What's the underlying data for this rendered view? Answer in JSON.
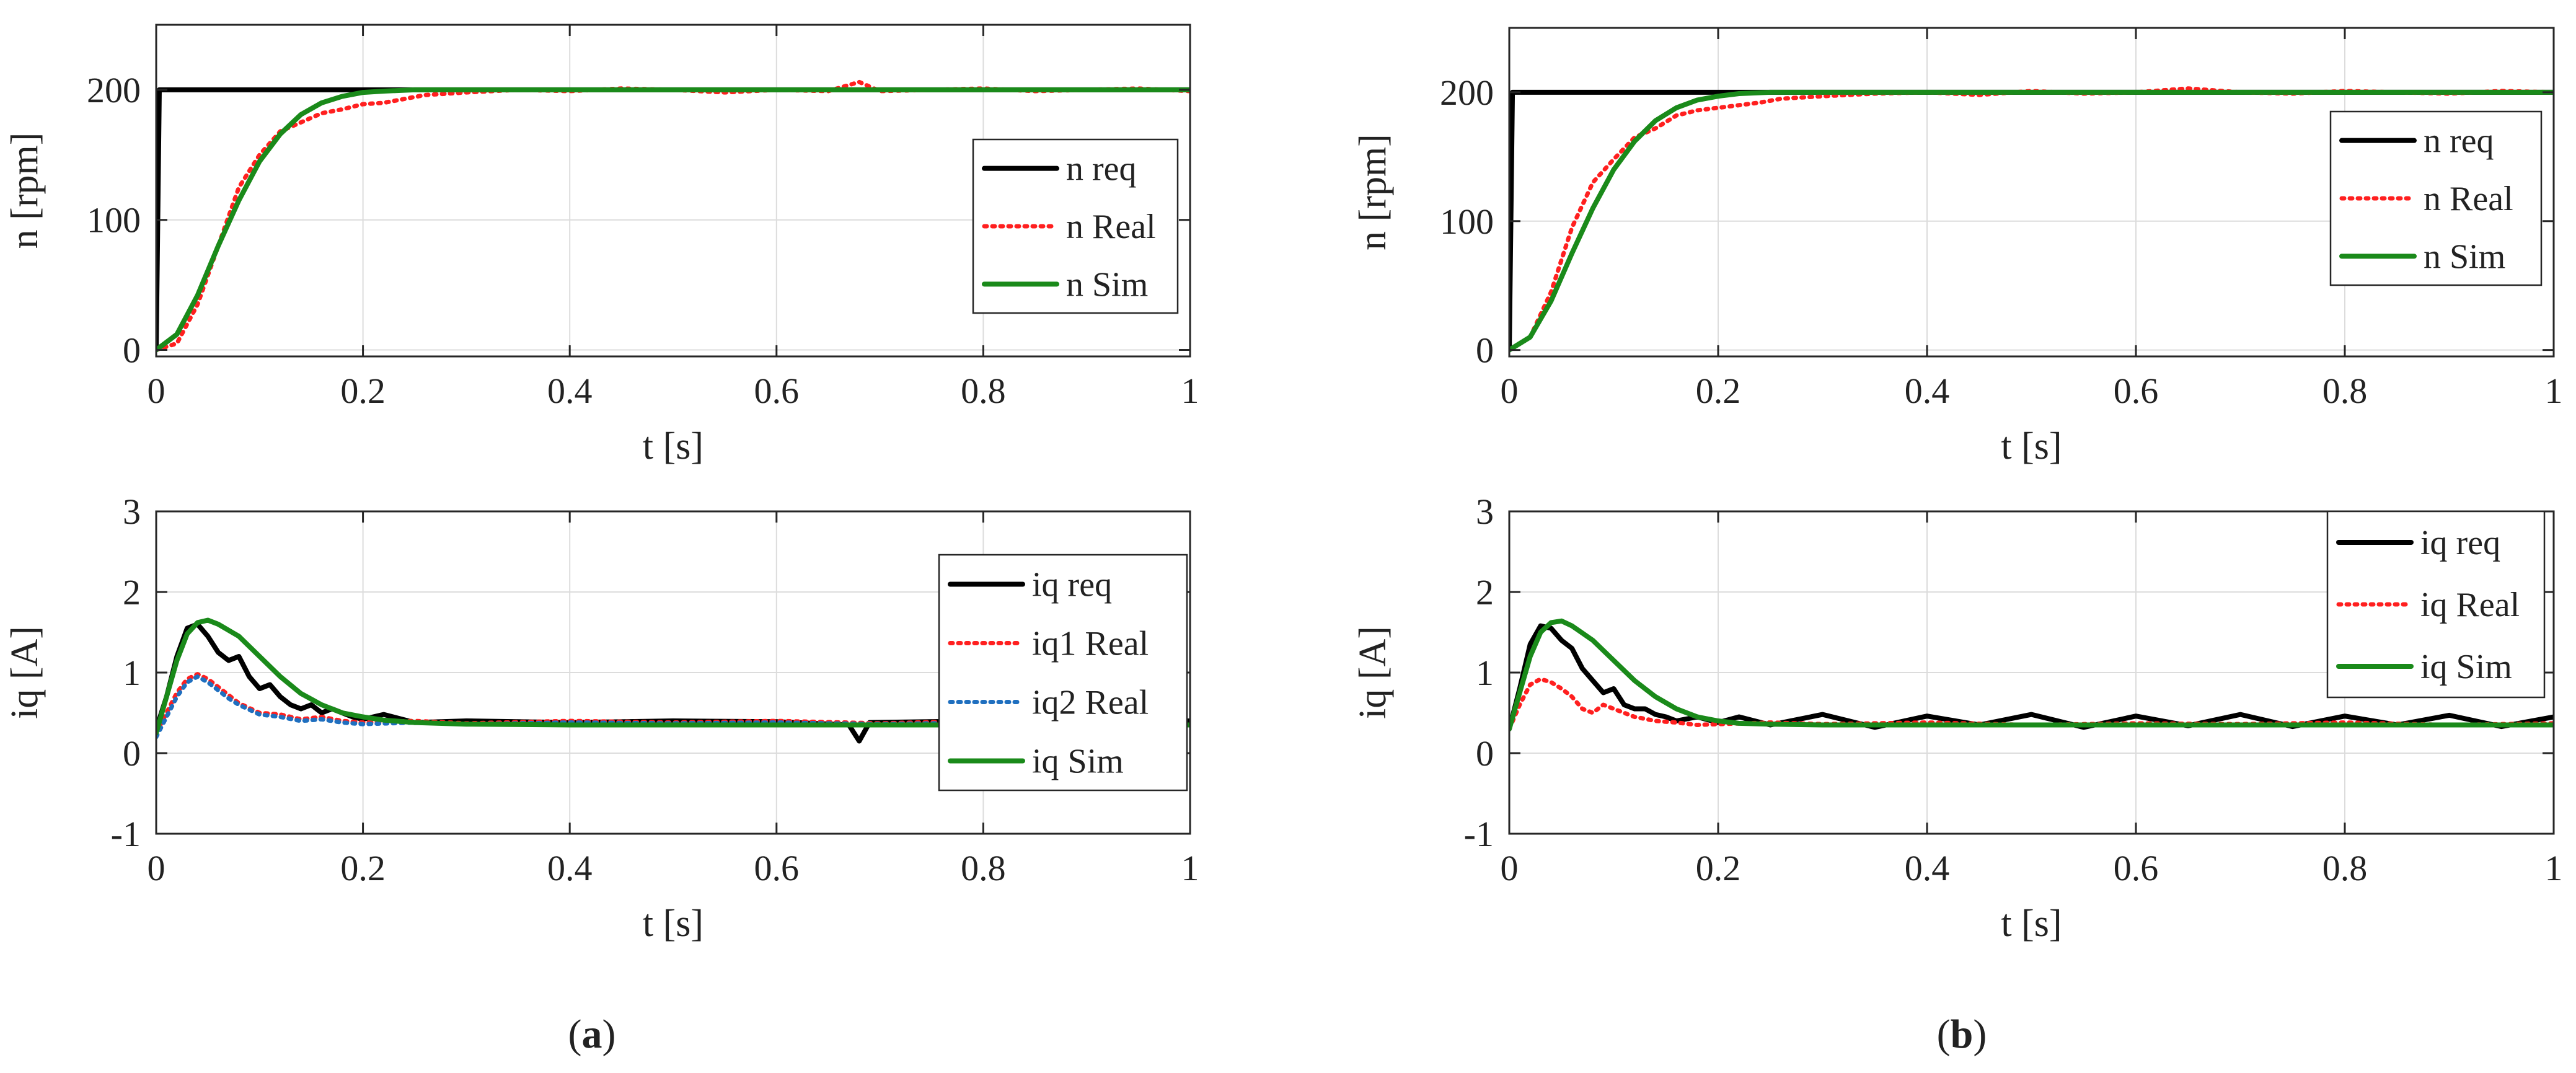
{
  "colors": {
    "req": "#000000",
    "real": "#ff1f1f",
    "real2": "#1f6fbf",
    "sim": "#1a8a1a",
    "axis": "#262626",
    "grid": "#dcdcdc"
  },
  "panels": [
    {
      "caption": "(a)",
      "caption_letter": "a",
      "caption_open": "(",
      "caption_close": ")"
    },
    {
      "caption": "(b)",
      "caption_letter": "b",
      "caption_open": "(",
      "caption_close": ")"
    }
  ],
  "chart_data": [
    {
      "id": "a-speed",
      "type": "line",
      "xlabel": "t [s]",
      "ylabel": "n [rpm]",
      "xlim": [
        0,
        1
      ],
      "ylim": [
        -5,
        250
      ],
      "xticks": [
        0,
        0.2,
        0.4,
        0.6,
        0.8,
        1
      ],
      "xtick_labels": [
        "0",
        "0.2",
        "0.4",
        "0.6",
        "0.8",
        "1"
      ],
      "yticks": [
        0,
        100,
        200
      ],
      "ytick_labels": [
        "0",
        "100",
        "200"
      ],
      "grid": true,
      "legend_position": "right",
      "series": [
        {
          "name": "n req",
          "style": "solid",
          "color": "#000000",
          "x": [
            0,
            0.003,
            1
          ],
          "y": [
            0,
            200,
            200
          ]
        },
        {
          "name": "n Real",
          "style": "dotted",
          "color": "#ff1f1f",
          "x": [
            0,
            0.02,
            0.04,
            0.06,
            0.08,
            0.1,
            0.12,
            0.14,
            0.16,
            0.18,
            0.2,
            0.22,
            0.24,
            0.26,
            0.3,
            0.35,
            0.4,
            0.45,
            0.5,
            0.55,
            0.6,
            0.65,
            0.68,
            0.7,
            0.75,
            0.8,
            0.85,
            0.9,
            0.95,
            1.0
          ],
          "y": [
            0,
            5,
            35,
            80,
            125,
            150,
            168,
            175,
            182,
            185,
            189,
            190,
            193,
            196,
            198,
            200,
            199,
            201,
            200,
            198,
            200,
            199,
            206,
            199,
            200,
            201,
            199,
            200,
            201,
            199
          ]
        },
        {
          "name": "n Sim",
          "style": "solid",
          "color": "#1a8a1a",
          "x": [
            0,
            0.02,
            0.04,
            0.06,
            0.08,
            0.1,
            0.12,
            0.14,
            0.16,
            0.18,
            0.2,
            0.22,
            0.25,
            0.3,
            0.4,
            0.6,
            0.8,
            1.0
          ],
          "y": [
            0,
            12,
            42,
            80,
            115,
            145,
            166,
            181,
            190,
            195,
            198,
            199,
            200,
            200,
            200,
            200,
            200,
            200
          ]
        }
      ]
    },
    {
      "id": "a-current",
      "type": "line",
      "xlabel": "t [s]",
      "ylabel": "iq [A]",
      "xlim": [
        0,
        1
      ],
      "ylim": [
        -1,
        3
      ],
      "xticks": [
        0,
        0.2,
        0.4,
        0.6,
        0.8,
        1
      ],
      "xtick_labels": [
        "0",
        "0.2",
        "0.4",
        "0.6",
        "0.8",
        "1"
      ],
      "yticks": [
        -1,
        0,
        1,
        2,
        3
      ],
      "ytick_labels": [
        "-1",
        "0",
        "1",
        "2",
        "3"
      ],
      "grid": true,
      "legend_position": "right",
      "series": [
        {
          "name": "iq req",
          "style": "solid",
          "color": "#000000",
          "x": [
            0,
            0.01,
            0.02,
            0.03,
            0.04,
            0.05,
            0.06,
            0.07,
            0.08,
            0.09,
            0.1,
            0.11,
            0.12,
            0.13,
            0.14,
            0.15,
            0.16,
            0.17,
            0.18,
            0.19,
            0.2,
            0.22,
            0.25,
            0.3,
            0.4,
            0.5,
            0.6,
            0.67,
            0.68,
            0.69,
            0.8,
            0.9,
            1.0
          ],
          "y": [
            0.3,
            0.7,
            1.2,
            1.55,
            1.6,
            1.45,
            1.25,
            1.15,
            1.2,
            0.95,
            0.8,
            0.85,
            0.7,
            0.6,
            0.55,
            0.6,
            0.5,
            0.55,
            0.5,
            0.45,
            0.42,
            0.48,
            0.38,
            0.4,
            0.38,
            0.4,
            0.39,
            0.35,
            0.15,
            0.38,
            0.4,
            0.38,
            0.4
          ]
        },
        {
          "name": "iq1 Real",
          "style": "dotted",
          "color": "#ff1f1f",
          "x": [
            0,
            0.01,
            0.02,
            0.03,
            0.04,
            0.05,
            0.06,
            0.07,
            0.08,
            0.1,
            0.12,
            0.14,
            0.16,
            0.18,
            0.2,
            0.25,
            0.3,
            0.4,
            0.5,
            0.6,
            0.7,
            0.8,
            0.9,
            1.0
          ],
          "y": [
            0.25,
            0.5,
            0.75,
            0.92,
            0.98,
            0.92,
            0.82,
            0.72,
            0.62,
            0.5,
            0.48,
            0.42,
            0.45,
            0.4,
            0.38,
            0.4,
            0.37,
            0.4,
            0.38,
            0.4,
            0.37,
            0.4,
            0.38,
            0.39
          ]
        },
        {
          "name": "iq2 Real",
          "style": "dotted",
          "color": "#1f6fbf",
          "x": [
            0,
            0.01,
            0.02,
            0.03,
            0.04,
            0.05,
            0.06,
            0.07,
            0.08,
            0.1,
            0.12,
            0.14,
            0.16,
            0.18,
            0.2,
            0.25,
            0.3,
            0.4,
            0.5,
            0.6,
            0.7,
            0.8,
            0.9,
            1.0
          ],
          "y": [
            0.2,
            0.45,
            0.7,
            0.88,
            0.95,
            0.88,
            0.78,
            0.68,
            0.6,
            0.48,
            0.45,
            0.4,
            0.42,
            0.38,
            0.36,
            0.38,
            0.36,
            0.38,
            0.37,
            0.38,
            0.36,
            0.38,
            0.37,
            0.38
          ]
        },
        {
          "name": "iq Sim",
          "style": "solid",
          "color": "#1a8a1a",
          "x": [
            0,
            0.01,
            0.02,
            0.03,
            0.04,
            0.05,
            0.06,
            0.08,
            0.1,
            0.12,
            0.14,
            0.16,
            0.18,
            0.2,
            0.22,
            0.25,
            0.3,
            0.4,
            0.6,
            0.8,
            1.0
          ],
          "y": [
            0.25,
            0.7,
            1.15,
            1.48,
            1.62,
            1.65,
            1.6,
            1.45,
            1.2,
            0.95,
            0.74,
            0.6,
            0.5,
            0.45,
            0.41,
            0.38,
            0.36,
            0.35,
            0.35,
            0.35,
            0.35
          ]
        }
      ]
    },
    {
      "id": "b-speed",
      "type": "line",
      "xlabel": "t [s]",
      "ylabel": "n [rpm]",
      "xlim": [
        0,
        1
      ],
      "ylim": [
        -5,
        250
      ],
      "xticks": [
        0,
        0.2,
        0.4,
        0.6,
        0.8,
        1
      ],
      "xtick_labels": [
        "0",
        "0.2",
        "0.4",
        "0.6",
        "0.8",
        "1"
      ],
      "yticks": [
        0,
        100,
        200
      ],
      "ytick_labels": [
        "0",
        "100",
        "200"
      ],
      "grid": true,
      "legend_position": "right",
      "series": [
        {
          "name": "n req",
          "style": "solid",
          "color": "#000000",
          "x": [
            0,
            0.003,
            1
          ],
          "y": [
            0,
            200,
            200
          ]
        },
        {
          "name": "n Real",
          "style": "dotted",
          "color": "#ff1f1f",
          "x": [
            0,
            0.02,
            0.04,
            0.06,
            0.08,
            0.1,
            0.12,
            0.14,
            0.16,
            0.18,
            0.2,
            0.22,
            0.24,
            0.26,
            0.3,
            0.35,
            0.4,
            0.45,
            0.5,
            0.55,
            0.6,
            0.65,
            0.7,
            0.75,
            0.8,
            0.85,
            0.9,
            0.95,
            1.0
          ],
          "y": [
            0,
            10,
            45,
            95,
            130,
            148,
            165,
            172,
            182,
            186,
            188,
            190,
            192,
            195,
            197,
            199,
            200,
            198,
            201,
            199,
            200,
            203,
            200,
            199,
            201,
            200,
            199,
            201,
            200
          ]
        },
        {
          "name": "n Sim",
          "style": "solid",
          "color": "#1a8a1a",
          "x": [
            0,
            0.02,
            0.04,
            0.06,
            0.08,
            0.1,
            0.12,
            0.14,
            0.16,
            0.18,
            0.2,
            0.22,
            0.25,
            0.3,
            0.4,
            0.6,
            0.8,
            1.0
          ],
          "y": [
            0,
            10,
            38,
            75,
            110,
            140,
            162,
            178,
            188,
            194,
            197,
            199,
            200,
            200,
            200,
            200,
            200,
            200
          ]
        }
      ]
    },
    {
      "id": "b-current",
      "type": "line",
      "xlabel": "t [s]",
      "ylabel": "iq [A]",
      "xlim": [
        0,
        1
      ],
      "ylim": [
        -1,
        3
      ],
      "xticks": [
        0,
        0.2,
        0.4,
        0.6,
        0.8,
        1
      ],
      "xtick_labels": [
        "0",
        "0.2",
        "0.4",
        "0.6",
        "0.8",
        "1"
      ],
      "yticks": [
        -1,
        0,
        1,
        2,
        3
      ],
      "ytick_labels": [
        "-1",
        "0",
        "1",
        "2",
        "3"
      ],
      "grid": true,
      "legend_position": "right",
      "series": [
        {
          "name": "iq req",
          "style": "solid",
          "color": "#000000",
          "x": [
            0,
            0.01,
            0.02,
            0.03,
            0.04,
            0.05,
            0.06,
            0.07,
            0.08,
            0.09,
            0.1,
            0.11,
            0.12,
            0.13,
            0.14,
            0.15,
            0.16,
            0.18,
            0.2,
            0.22,
            0.25,
            0.3,
            0.35,
            0.4,
            0.45,
            0.5,
            0.55,
            0.6,
            0.65,
            0.7,
            0.75,
            0.8,
            0.85,
            0.9,
            0.95,
            1.0
          ],
          "y": [
            0.3,
            0.8,
            1.35,
            1.58,
            1.55,
            1.4,
            1.3,
            1.05,
            0.9,
            0.75,
            0.8,
            0.6,
            0.55,
            0.55,
            0.48,
            0.45,
            0.4,
            0.45,
            0.38,
            0.45,
            0.35,
            0.48,
            0.32,
            0.46,
            0.35,
            0.48,
            0.32,
            0.46,
            0.34,
            0.48,
            0.33,
            0.46,
            0.35,
            0.47,
            0.33,
            0.45
          ]
        },
        {
          "name": "iq Real",
          "style": "dotted",
          "color": "#ff1f1f",
          "x": [
            0,
            0.01,
            0.02,
            0.03,
            0.04,
            0.05,
            0.06,
            0.07,
            0.08,
            0.09,
            0.1,
            0.12,
            0.14,
            0.16,
            0.18,
            0.2,
            0.25,
            0.3,
            0.4,
            0.5,
            0.6,
            0.7,
            0.8,
            0.9,
            1.0
          ],
          "y": [
            0.3,
            0.6,
            0.85,
            0.92,
            0.88,
            0.8,
            0.7,
            0.55,
            0.5,
            0.6,
            0.55,
            0.45,
            0.4,
            0.38,
            0.35,
            0.36,
            0.38,
            0.36,
            0.38,
            0.35,
            0.37,
            0.36,
            0.38,
            0.35,
            0.37
          ]
        },
        {
          "name": "iq Sim",
          "style": "solid",
          "color": "#1a8a1a",
          "x": [
            0,
            0.01,
            0.02,
            0.03,
            0.04,
            0.05,
            0.06,
            0.08,
            0.1,
            0.12,
            0.14,
            0.16,
            0.18,
            0.2,
            0.22,
            0.25,
            0.3,
            0.4,
            0.6,
            0.8,
            1.0
          ],
          "y": [
            0.3,
            0.75,
            1.2,
            1.5,
            1.62,
            1.64,
            1.58,
            1.4,
            1.15,
            0.9,
            0.7,
            0.55,
            0.45,
            0.4,
            0.37,
            0.36,
            0.35,
            0.35,
            0.35,
            0.35,
            0.35
          ]
        }
      ]
    }
  ]
}
